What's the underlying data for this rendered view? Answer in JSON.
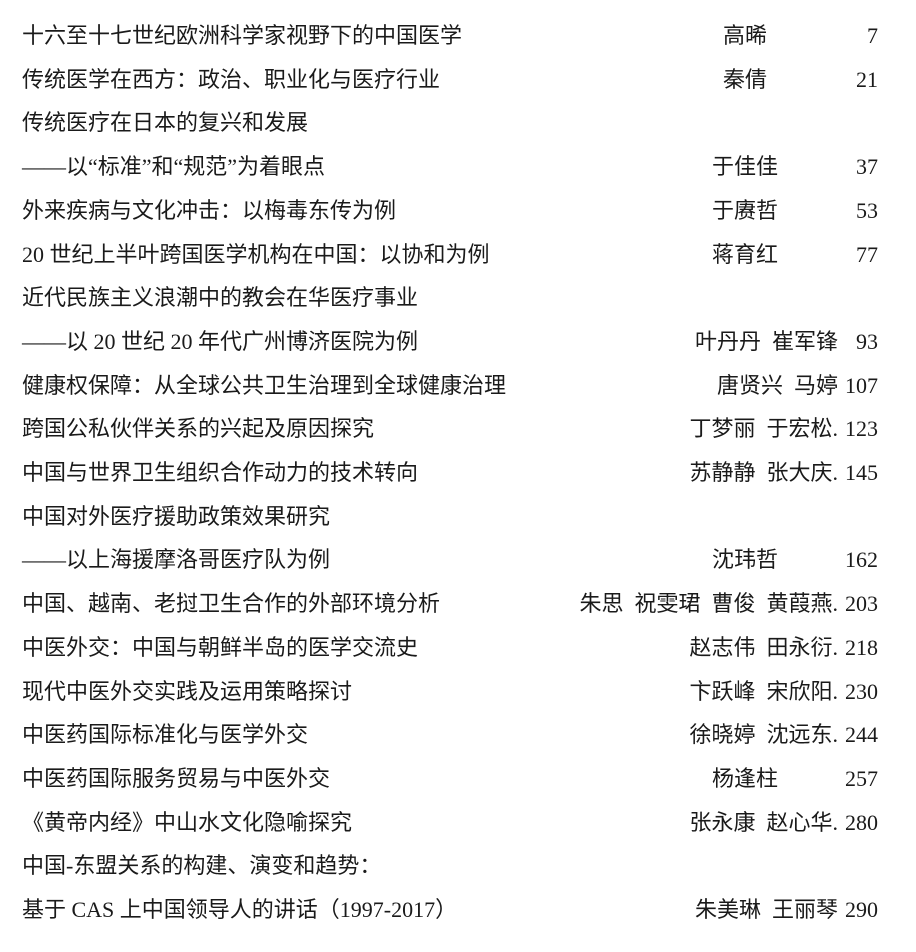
{
  "toc": {
    "entries": [
      {
        "title": "十六至十七世纪欧洲科学家视野下的中国医学",
        "authors": "高晞",
        "page": "7"
      },
      {
        "title": "传统医学在西方：政治、职业化与医疗行业",
        "authors": "秦倩",
        "page": "21"
      },
      {
        "title": "传统医疗在日本的复兴和发展"
      },
      {
        "title": "——以“标准”和“规范”为着眼点",
        "authors": "于佳佳",
        "page": "37"
      },
      {
        "title": "外来疾病与文化冲击：以梅毒东传为例",
        "authors": "于赓哲",
        "page": "53"
      },
      {
        "title": "20 世纪上半叶跨国医学机构在中国：以协和为例",
        "authors": "蒋育红",
        "page": "77"
      },
      {
        "title": "近代民族主义浪潮中的教会在华医疗事业"
      },
      {
        "title": "——以 20 世纪 20 年代广州博济医院为例",
        "authors": "叶丹丹  崔军锋",
        "page": "93"
      },
      {
        "title": "健康权保障：从全球公共卫生治理到全球健康治理",
        "authors": "唐贤兴  马婷",
        "page": "107"
      },
      {
        "title": "跨国公私伙伴关系的兴起及原因探究",
        "authors": "丁梦丽  于宏松.",
        "page": "123"
      },
      {
        "title": "中国与世界卫生组织合作动力的技术转向",
        "authors": "苏静静  张大庆.",
        "page": "145"
      },
      {
        "title": "中国对外医疗援助政策效果研究"
      },
      {
        "title": "——以上海援摩洛哥医疗队为例",
        "authors": "沈玮哲",
        "page": "162"
      },
      {
        "title": "中国、越南、老挝卫生合作的外部环境分析",
        "authors": "朱思  祝雯珺  曹俊  黄葭燕.",
        "page": "203"
      },
      {
        "title": "中医外交：中国与朝鲜半岛的医学交流史",
        "authors": "赵志伟  田永衍.",
        "page": "218"
      },
      {
        "title": "现代中医外交实践及运用策略探讨",
        "authors": "卞跃峰  宋欣阳.",
        "page": "230"
      },
      {
        "title": "中医药国际标准化与医学外交",
        "authors": "徐晓婷  沈远东.",
        "page": "244"
      },
      {
        "title": "中医药国际服务贸易与中医外交",
        "authors": "杨逢柱",
        "page": "257"
      },
      {
        "title": "《黄帝内经》中山水文化隐喻探究",
        "authors": "张永康  赵心华.",
        "page": "280"
      },
      {
        "title": "中国-东盟关系的构建、演变和趋势："
      },
      {
        "title": "基于 CAS 上中国领导人的讲话（1997-2017）",
        "authors": "朱美琳  王丽琴",
        "page": "290"
      }
    ]
  }
}
